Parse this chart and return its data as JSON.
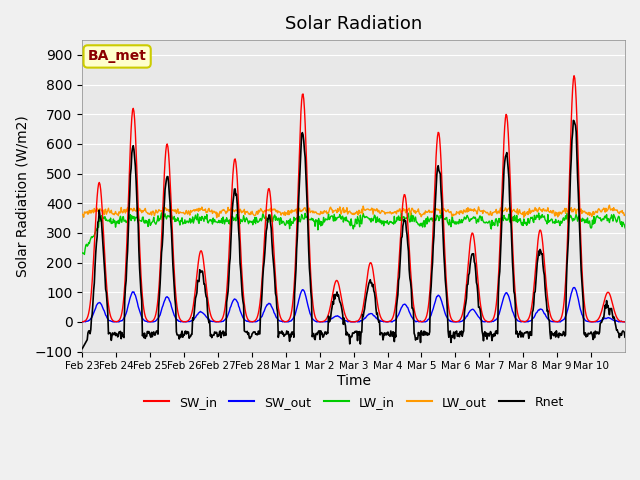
{
  "title": "Solar Radiation",
  "ylabel": "Solar Radiation (W/m2)",
  "xlabel": "Time",
  "ylim": [
    -100,
    950
  ],
  "yticks": [
    -100,
    0,
    100,
    200,
    300,
    400,
    500,
    600,
    700,
    800,
    900
  ],
  "n_days": 16,
  "xtick_labels": [
    "Feb 23",
    "Feb 24",
    "Feb 25",
    "Feb 26",
    "Feb 27",
    "Feb 28",
    "Mar 1",
    "Mar 2",
    "Mar 3",
    "Mar 4",
    "Mar 5",
    "Mar 6",
    "Mar 7",
    "Mar 8",
    "Mar 9",
    "Mar 10"
  ],
  "station_label": "BA_met",
  "colors": {
    "SW_in": "#ff0000",
    "SW_out": "#0000ff",
    "LW_in": "#00cc00",
    "LW_out": "#ff9900",
    "Rnet": "#000000"
  },
  "sw_in_peaks": [
    470,
    720,
    600,
    240,
    550,
    450,
    770,
    140,
    200,
    430,
    640,
    300,
    700,
    310,
    830,
    100
  ],
  "background_color": "#e8e8e8",
  "fig_facecolor": "#f0f0f0"
}
